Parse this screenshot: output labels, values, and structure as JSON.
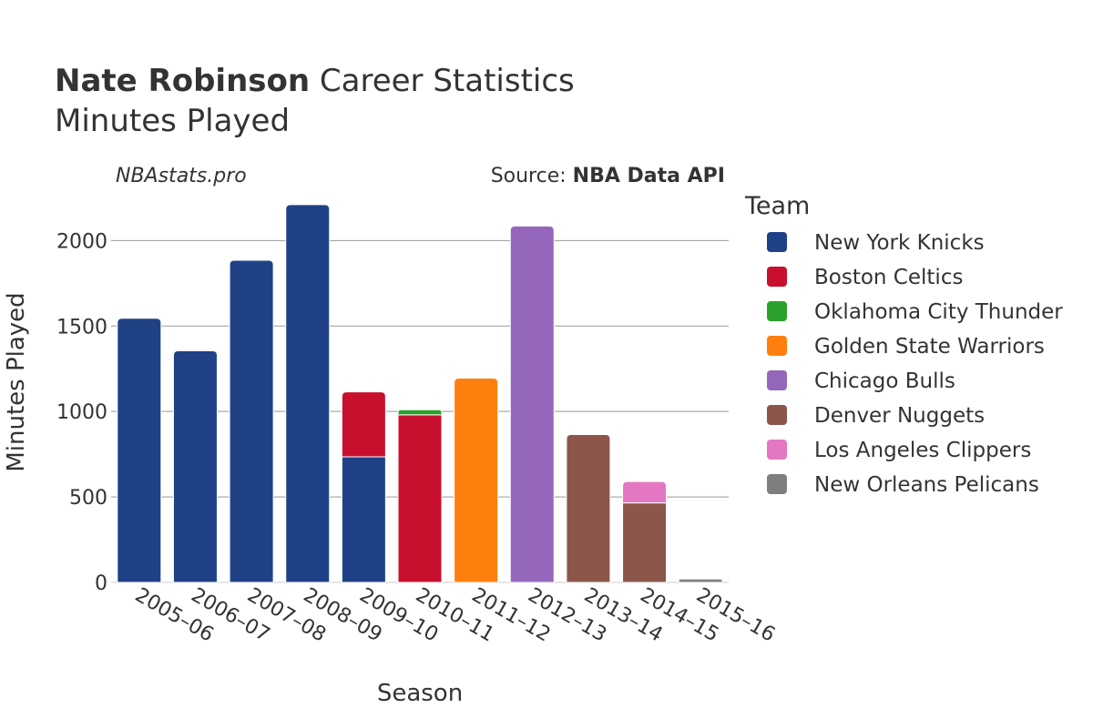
{
  "title": {
    "player": "Nate Robinson",
    "rest": " Career Statistics",
    "subtitle": "Minutes Played"
  },
  "watermark": "NBAstats.pro",
  "source": {
    "prefix": "Source: ",
    "name": "NBA Data API"
  },
  "chart_data": {
    "type": "bar",
    "stacked": true,
    "xlabel": "Season",
    "ylabel": "Minutes Played",
    "ylim": [
      0,
      2300
    ],
    "yticks": [
      0,
      500,
      1000,
      1500,
      2000
    ],
    "grid": true,
    "legend_title": "Team",
    "legend_position": "right",
    "categories": [
      "2005–06",
      "2006–07",
      "2007–08",
      "2008–09",
      "2009–10",
      "2010–11",
      "2011–12",
      "2012–13",
      "2013–14",
      "2014–15",
      "2015–16"
    ],
    "series": [
      {
        "name": "New York Knicks",
        "color": "#1f4287",
        "values": [
          1545,
          1355,
          1885,
          2210,
          735,
          0,
          0,
          0,
          0,
          0,
          0
        ]
      },
      {
        "name": "Boston Celtics",
        "color": "#c8102e",
        "values": [
          0,
          0,
          0,
          0,
          380,
          980,
          0,
          0,
          0,
          0,
          0
        ]
      },
      {
        "name": "Oklahoma City Thunder",
        "color": "#2ca02c",
        "values": [
          0,
          0,
          0,
          0,
          0,
          30,
          0,
          0,
          0,
          0,
          0
        ]
      },
      {
        "name": "Golden State Warriors",
        "color": "#ff7f0e",
        "values": [
          0,
          0,
          0,
          0,
          0,
          0,
          1195,
          0,
          0,
          0,
          0
        ]
      },
      {
        "name": "Chicago Bulls",
        "color": "#9467bd",
        "values": [
          0,
          0,
          0,
          0,
          0,
          0,
          0,
          2085,
          0,
          0,
          0
        ]
      },
      {
        "name": "Denver Nuggets",
        "color": "#8c564b",
        "values": [
          0,
          0,
          0,
          0,
          0,
          0,
          0,
          0,
          865,
          465,
          0
        ]
      },
      {
        "name": "Los Angeles Clippers",
        "color": "#e377c2",
        "values": [
          0,
          0,
          0,
          0,
          0,
          0,
          0,
          0,
          0,
          125,
          0
        ]
      },
      {
        "name": "New Orleans Pelicans",
        "color": "#7f7f7f",
        "values": [
          0,
          0,
          0,
          0,
          0,
          0,
          0,
          0,
          0,
          0,
          20
        ]
      }
    ]
  }
}
